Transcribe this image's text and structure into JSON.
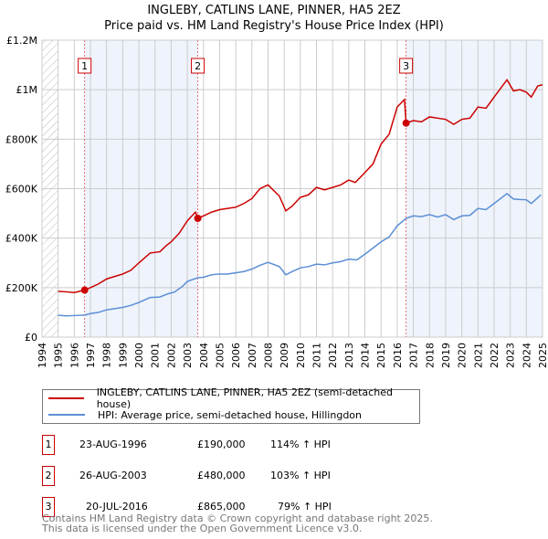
{
  "title": "INGLEBY, CATLINS LANE, PINNER, HA5 2EZ",
  "subtitle": "Price paid vs. HM Land Registry's House Price Index (HPI)",
  "chart_data": {
    "type": "line",
    "xlim": [
      1994,
      2025
    ],
    "ylim": [
      0,
      1200000
    ],
    "y_ticks": [
      {
        "v": 0,
        "label": "£0"
      },
      {
        "v": 200000,
        "label": "£200K"
      },
      {
        "v": 400000,
        "label": "£400K"
      },
      {
        "v": 600000,
        "label": "£600K"
      },
      {
        "v": 800000,
        "label": "£800K"
      },
      {
        "v": 1000000,
        "label": "£1M"
      },
      {
        "v": 1200000,
        "label": "£1.2M"
      }
    ],
    "x_ticks": [
      "1994",
      "1995",
      "1996",
      "1997",
      "1998",
      "1999",
      "2000",
      "2001",
      "2002",
      "2003",
      "2004",
      "2005",
      "2006",
      "2007",
      "2008",
      "2009",
      "2010",
      "2011",
      "2012",
      "2013",
      "2014",
      "2015",
      "2016",
      "2017",
      "2018",
      "2019",
      "2020",
      "2021",
      "2022",
      "2023",
      "2024",
      "2025"
    ],
    "grid": true,
    "shaded_ranges": [
      [
        1996.64,
        2003.65
      ],
      [
        2016.55,
        2025
      ]
    ],
    "series": [
      {
        "name": "INGLEBY, CATLINS LANE, PINNER, HA5 2EZ (semi-detached house)",
        "color": "#cc0000",
        "points": [
          [
            1995,
            185000
          ],
          [
            1995.5,
            183000
          ],
          [
            1996,
            180000
          ],
          [
            1996.64,
            190000
          ],
          [
            1997,
            200000
          ],
          [
            1997.5,
            215000
          ],
          [
            1998,
            235000
          ],
          [
            1998.5,
            245000
          ],
          [
            1999,
            255000
          ],
          [
            1999.5,
            270000
          ],
          [
            2000,
            300000
          ],
          [
            2000.7,
            340000
          ],
          [
            2001.3,
            345000
          ],
          [
            2001.7,
            370000
          ],
          [
            2002,
            385000
          ],
          [
            2002.5,
            420000
          ],
          [
            2003,
            470000
          ],
          [
            2003.5,
            505000
          ],
          [
            2003.65,
            480000
          ],
          [
            2004,
            490000
          ],
          [
            2004.5,
            505000
          ],
          [
            2005,
            515000
          ],
          [
            2005.5,
            520000
          ],
          [
            2006,
            525000
          ],
          [
            2006.5,
            540000
          ],
          [
            2007,
            560000
          ],
          [
            2007.5,
            600000
          ],
          [
            2008,
            615000
          ],
          [
            2008.7,
            570000
          ],
          [
            2009.1,
            510000
          ],
          [
            2009.5,
            530000
          ],
          [
            2010,
            565000
          ],
          [
            2010.5,
            575000
          ],
          [
            2011,
            605000
          ],
          [
            2011.5,
            595000
          ],
          [
            2012,
            605000
          ],
          [
            2012.5,
            615000
          ],
          [
            2013,
            635000
          ],
          [
            2013.4,
            625000
          ],
          [
            2014,
            665000
          ],
          [
            2014.5,
            700000
          ],
          [
            2015,
            780000
          ],
          [
            2015.5,
            820000
          ],
          [
            2016,
            930000
          ],
          [
            2016.45,
            960000
          ],
          [
            2016.55,
            865000
          ],
          [
            2017,
            875000
          ],
          [
            2017.5,
            870000
          ],
          [
            2018,
            890000
          ],
          [
            2018.5,
            885000
          ],
          [
            2019,
            880000
          ],
          [
            2019.5,
            860000
          ],
          [
            2020,
            880000
          ],
          [
            2020.5,
            885000
          ],
          [
            2021,
            930000
          ],
          [
            2021.5,
            925000
          ],
          [
            2022,
            970000
          ],
          [
            2022.8,
            1040000
          ],
          [
            2023.2,
            995000
          ],
          [
            2023.6,
            1000000
          ],
          [
            2024,
            990000
          ],
          [
            2024.3,
            970000
          ],
          [
            2024.7,
            1015000
          ],
          [
            2025,
            1020000
          ]
        ]
      },
      {
        "name": "HPI: Average price, semi-detached house, Hillingdon",
        "color": "#5b8fd6",
        "points": [
          [
            1995,
            88000
          ],
          [
            1995.5,
            86000
          ],
          [
            1996,
            87000
          ],
          [
            1996.64,
            89000
          ],
          [
            1997,
            95000
          ],
          [
            1997.5,
            100000
          ],
          [
            1998,
            110000
          ],
          [
            1998.5,
            115000
          ],
          [
            1999,
            120000
          ],
          [
            1999.5,
            128000
          ],
          [
            2000,
            140000
          ],
          [
            2000.7,
            160000
          ],
          [
            2001.3,
            162000
          ],
          [
            2001.8,
            175000
          ],
          [
            2002.2,
            182000
          ],
          [
            2002.7,
            205000
          ],
          [
            2003,
            225000
          ],
          [
            2003.65,
            240000
          ],
          [
            2004,
            242000
          ],
          [
            2004.5,
            252000
          ],
          [
            2005,
            255000
          ],
          [
            2005.5,
            255000
          ],
          [
            2006,
            260000
          ],
          [
            2006.5,
            265000
          ],
          [
            2007,
            275000
          ],
          [
            2007.5,
            290000
          ],
          [
            2008,
            302000
          ],
          [
            2008.7,
            285000
          ],
          [
            2009.1,
            252000
          ],
          [
            2009.5,
            265000
          ],
          [
            2010,
            280000
          ],
          [
            2010.5,
            285000
          ],
          [
            2011,
            295000
          ],
          [
            2011.5,
            292000
          ],
          [
            2012,
            300000
          ],
          [
            2012.5,
            305000
          ],
          [
            2013,
            315000
          ],
          [
            2013.5,
            312000
          ],
          [
            2014,
            335000
          ],
          [
            2014.5,
            360000
          ],
          [
            2015,
            385000
          ],
          [
            2015.5,
            405000
          ],
          [
            2016,
            450000
          ],
          [
            2016.55,
            480000
          ],
          [
            2017,
            490000
          ],
          [
            2017.5,
            487000
          ],
          [
            2018,
            495000
          ],
          [
            2018.5,
            485000
          ],
          [
            2019,
            495000
          ],
          [
            2019.5,
            475000
          ],
          [
            2020,
            490000
          ],
          [
            2020.5,
            492000
          ],
          [
            2021,
            520000
          ],
          [
            2021.5,
            515000
          ],
          [
            2022,
            540000
          ],
          [
            2022.8,
            580000
          ],
          [
            2023.2,
            558000
          ],
          [
            2023.6,
            556000
          ],
          [
            2024,
            555000
          ],
          [
            2024.3,
            540000
          ],
          [
            2024.9,
            575000
          ]
        ]
      }
    ],
    "sales": [
      {
        "n": "1",
        "x": 1996.64,
        "y": 190000
      },
      {
        "n": "2",
        "x": 2003.65,
        "y": 480000
      },
      {
        "n": "3",
        "x": 2016.55,
        "y": 865000
      }
    ]
  },
  "legend": {
    "red": "INGLEBY, CATLINS LANE, PINNER, HA5 2EZ (semi-detached house)",
    "blue": "HPI: Average price, semi-detached house, Hillingdon"
  },
  "table": [
    {
      "n": "1",
      "date": "23-AUG-1996",
      "price": "£190,000",
      "hpi": "114% ↑ HPI"
    },
    {
      "n": "2",
      "date": "26-AUG-2003",
      "price": "£480,000",
      "hpi": "103% ↑ HPI"
    },
    {
      "n": "3",
      "date": "20-JUL-2016",
      "price": "£865,000",
      "hpi": "79% ↑ HPI"
    }
  ],
  "footer": [
    "Contains HM Land Registry data © Crown copyright and database right 2025.",
    "This data is licensed under the Open Government Licence v3.0."
  ]
}
